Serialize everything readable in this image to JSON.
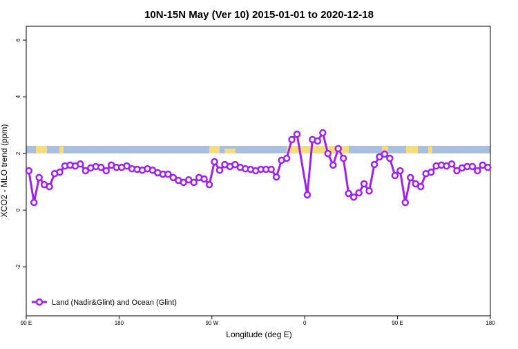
{
  "chart_data": {
    "type": "line",
    "title": "10N-15N May (Ver 10)   2015-01-01 to 2020-12-18",
    "x_label": "Longitude (deg E)",
    "y_label": "XCO2 - MLO trend (ppm)",
    "xlim": [
      90,
      540
    ],
    "xticks": [
      {
        "value": 90,
        "label": "90 E"
      },
      180,
      {
        "value": 270,
        "label": "90 W"
      },
      {
        "value": 360,
        "label": "0"
      },
      {
        "value": 450,
        "label": "90 E"
      },
      {
        "value": 540,
        "label": "180"
      }
    ],
    "ylim": [
      -3.73,
      6.49
    ],
    "yticks": [
      -2,
      0,
      2,
      4,
      6
    ],
    "legend": "bottom-left",
    "series": [
      {
        "name": "Land (Nadir&Glint) and Ocean (Glint)",
        "color": "#a020f0",
        "x": [
          92.5,
          97.5,
          102.5,
          107.5,
          112.5,
          117.5,
          122.5,
          127.5,
          132.5,
          137.5,
          142.5,
          147.5,
          152.5,
          157.5,
          162.5,
          167.5,
          172.5,
          177.5,
          182.5,
          187.5,
          192.5,
          197.5,
          202.5,
          207.5,
          212.5,
          217.5,
          222.5,
          227.5,
          232.5,
          237.5,
          242.5,
          247.5,
          252.5,
          257.5,
          262.5,
          267.5,
          272.5,
          277.5,
          282.5,
          287.5,
          292.5,
          297.5,
          302.5,
          307.5,
          312.5,
          317.5,
          322.5,
          327.5,
          332.5,
          337.5,
          342.5,
          347.5,
          352.5,
          362.5,
          367.5,
          372.5,
          377.5,
          382.5,
          387.5,
          392.5,
          397.5,
          402.5,
          407.5,
          412.5,
          417.5,
          422.5,
          427.5,
          432.5,
          437.5,
          442.5,
          447.5,
          452.5,
          457.5,
          462.5,
          467.5,
          472.5,
          477.5,
          482.5,
          487.5,
          492.5,
          497.5,
          502.5,
          507.5,
          512.5,
          517.5,
          522.5,
          527.5,
          532.5,
          537.5
        ],
        "values": [
          1.39,
          0.27,
          1.15,
          0.9,
          0.83,
          1.29,
          1.34,
          1.56,
          1.59,
          1.56,
          1.63,
          1.39,
          1.49,
          1.54,
          1.51,
          1.39,
          1.59,
          1.51,
          1.51,
          1.56,
          1.46,
          1.44,
          1.41,
          1.46,
          1.41,
          1.32,
          1.27,
          1.27,
          1.15,
          1.05,
          0.98,
          1.07,
          0.98,
          1.15,
          1.1,
          0.9,
          1.71,
          1.41,
          1.61,
          1.54,
          1.61,
          1.51,
          1.46,
          1.44,
          1.39,
          1.44,
          1.44,
          1.44,
          1.17,
          1.76,
          1.83,
          2.49,
          2.68,
          0.54,
          2.49,
          2.44,
          2.73,
          2.0,
          1.59,
          2.17,
          1.83,
          0.59,
          0.46,
          0.61,
          0.93,
          0.68,
          1.61,
          1.88,
          1.98,
          1.83,
          1.22,
          1.39,
          0.27,
          1.15,
          0.93,
          0.83,
          1.29,
          1.34,
          1.56,
          1.59,
          1.56,
          1.63,
          1.39,
          1.49,
          1.54,
          1.54,
          1.39,
          1.59,
          1.51
        ]
      }
    ]
  }
}
